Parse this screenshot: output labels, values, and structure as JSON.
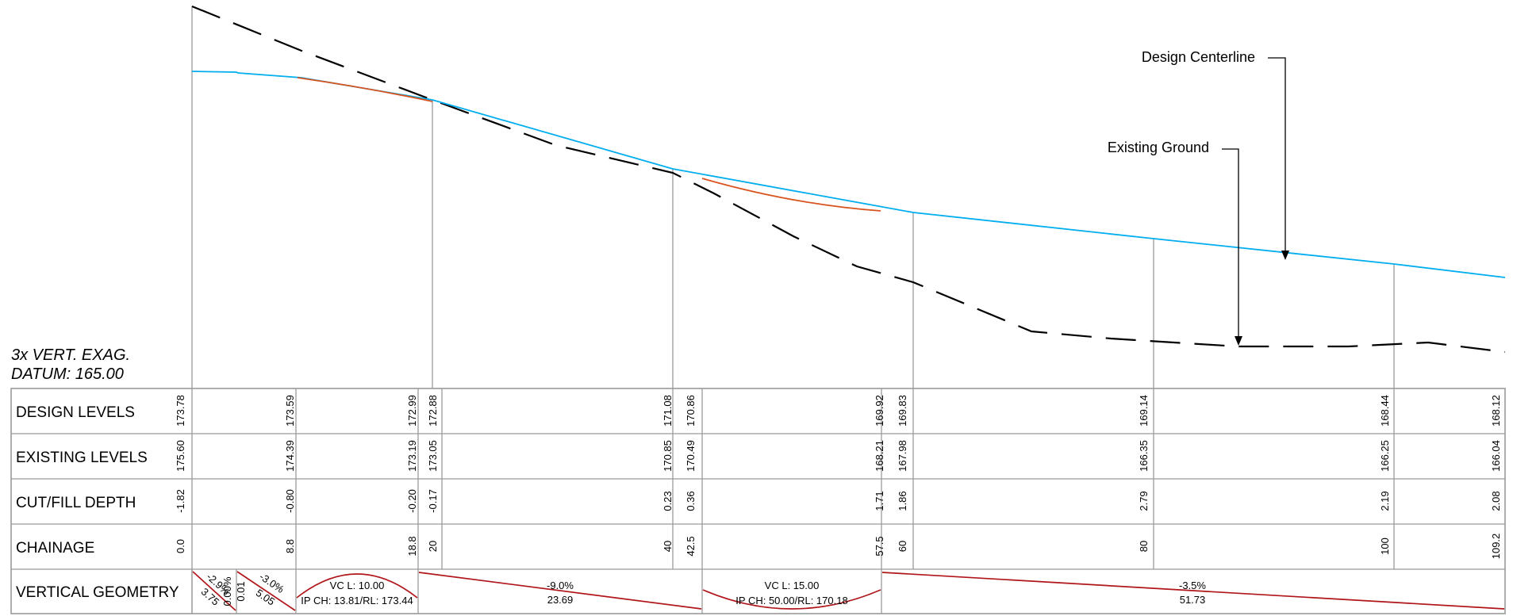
{
  "notes": {
    "exaggeration": "3x VERT. EXAG.",
    "datum": "DATUM: 165.00"
  },
  "callouts": {
    "design_centerline": "Design Centerline",
    "existing_ground": "Existing Ground"
  },
  "colors": {
    "design_line": "#00aeef",
    "existing_line": "#000000",
    "vertical_curve": "#d9531e",
    "geometry_line": "#b0151a",
    "table_grid": "#9a9a9a"
  },
  "band_labels": [
    "DESIGN LEVELS",
    "EXISTING LEVELS",
    "CUT/FILL DEPTH",
    "CHAINAGE",
    "VERTICAL GEOMETRY"
  ],
  "stations": [
    {
      "chainage": "0.0",
      "design": "173.78",
      "existing": "175.60",
      "cutfill": "-1.82"
    },
    {
      "chainage": "8.8",
      "design": "173.59",
      "existing": "174.39",
      "cutfill": "-0.80"
    },
    {
      "chainage": "18.8",
      "design": "172.99",
      "existing": "173.19",
      "cutfill": "-0.20"
    },
    {
      "chainage": "20",
      "design": "172.88",
      "existing": "173.05",
      "cutfill": "-0.17"
    },
    {
      "chainage": "40",
      "design": "171.08",
      "existing": "170.85",
      "cutfill": "0.23"
    },
    {
      "chainage": "42.5",
      "design": "170.86",
      "existing": "170.49",
      "cutfill": "0.36"
    },
    {
      "chainage": "57.5",
      "design": "169.92",
      "existing": "168.21",
      "cutfill": "1.71"
    },
    {
      "chainage": "60",
      "design": "169.83",
      "existing": "167.98",
      "cutfill": "1.86"
    },
    {
      "chainage": "80",
      "design": "169.14",
      "existing": "166.35",
      "cutfill": "2.79"
    },
    {
      "chainage": "100",
      "design": "168.44",
      "existing": "166.25",
      "cutfill": "2.19"
    },
    {
      "chainage": "109.2",
      "design": "168.12",
      "existing": "166.04",
      "cutfill": "2.08"
    }
  ],
  "vertical_geometry": {
    "grade1": {
      "percent": "-2.9%",
      "length": "3.75"
    },
    "grade2": {
      "percent": "0.00%",
      "length": "0.01"
    },
    "grade3": {
      "percent": "-3.0%",
      "length": "5.05"
    },
    "vc1": {
      "length": "VC L: 10.00",
      "ip": "IP CH: 13.81/RL: 173.44"
    },
    "grade4": {
      "percent": "-9.0%",
      "length": "23.69"
    },
    "vc2": {
      "length": "VC L: 15.00",
      "ip": "IP CH: 50.00/RL: 170.18"
    },
    "grade5": {
      "percent": "-3.5%",
      "length": "51.73"
    }
  }
}
